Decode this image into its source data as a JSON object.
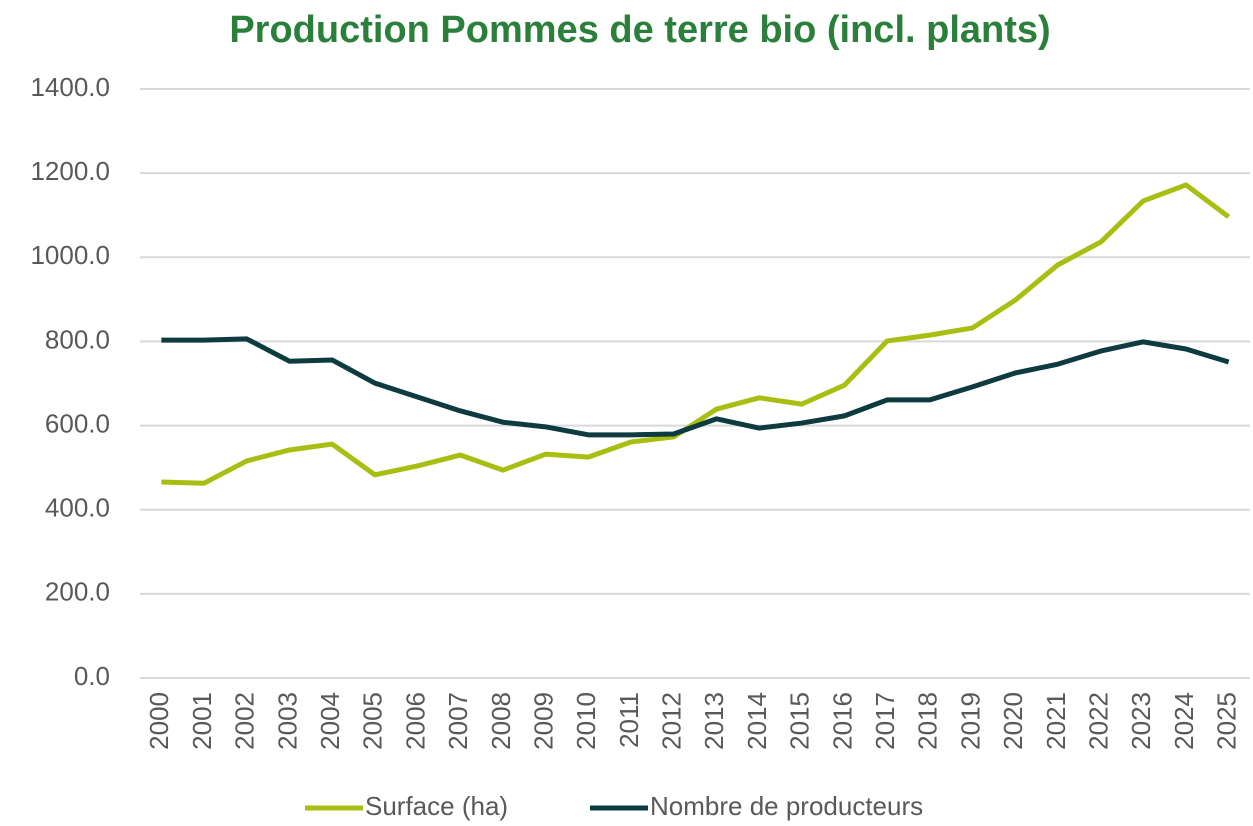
{
  "chart_data": {
    "type": "line",
    "title": "Production Pommes de terre bio (incl. plants)",
    "categories": [
      "2000",
      "2001",
      "2002",
      "2003",
      "2004",
      "2005",
      "2006",
      "2007",
      "2008",
      "2009",
      "2010",
      "2011",
      "2012",
      "2013",
      "2014",
      "2015",
      "2016",
      "2017",
      "2018",
      "2019",
      "2020",
      "2021",
      "2022",
      "2023",
      "2024",
      "2025"
    ],
    "series": [
      {
        "name": "Surface (ha)",
        "color": "#a8bf12",
        "values": [
          466,
          463,
          516,
          542,
          556,
          483,
          504,
          530,
          494,
          532,
          525,
          561,
          573,
          639,
          666,
          651,
          696,
          801,
          815,
          832,
          898,
          982,
          1036,
          1134,
          1172,
          1096
        ]
      },
      {
        "name": "Nombre de producteurs",
        "color": "#0d3b3f",
        "values": [
          803,
          803,
          806,
          753,
          756,
          701,
          668,
          635,
          608,
          597,
          578,
          578,
          580,
          616,
          594,
          606,
          623,
          661,
          661,
          692,
          725,
          746,
          777,
          799,
          782,
          751
        ]
      }
    ],
    "ylim": [
      0,
      1400
    ],
    "yticks": [
      {
        "value": 0,
        "label": "0.0"
      },
      {
        "value": 200,
        "label": "200.0"
      },
      {
        "value": 400,
        "label": "400.0"
      },
      {
        "value": 600,
        "label": "600.0"
      },
      {
        "value": 800,
        "label": "800.0"
      },
      {
        "value": 1000,
        "label": "1000.0"
      },
      {
        "value": 1200,
        "label": "1200.0"
      },
      {
        "value": 1400,
        "label": "1400.0"
      }
    ],
    "grid": true,
    "legend": "bottom"
  }
}
